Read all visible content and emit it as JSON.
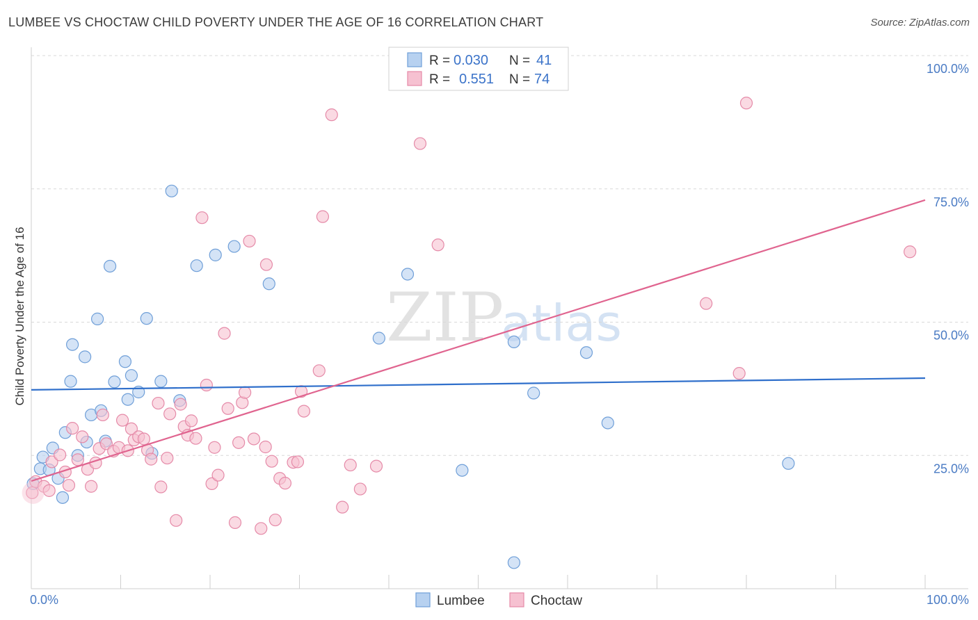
{
  "title": "LUMBEE VS CHOCTAW CHILD POVERTY UNDER THE AGE OF 16 CORRELATION CHART",
  "source": "Source: ZipAtlas.com",
  "watermark": {
    "zip": "ZIP",
    "atlas": "atlas"
  },
  "colors": {
    "lumbee_fill": "#b7d1f0",
    "lumbee_stroke": "#6f9fd8",
    "lumbee_line": "#2f6fcb",
    "choctaw_fill": "#f6c1d1",
    "choctaw_stroke": "#e58aa8",
    "choctaw_line": "#e0648f",
    "grid": "#d8d8d8",
    "axis_label": "#4a7bc4"
  },
  "legend": {
    "rows": [
      {
        "r_label": "R =",
        "r_value": "0.030",
        "n_label": "N =",
        "n_value": "41"
      },
      {
        "r_label": "R =",
        "r_value": "0.551",
        "n_label": "N =",
        "n_value": "74"
      }
    ]
  },
  "bottom_legend": [
    "Lumbee",
    "Choctaw"
  ],
  "chart_data": {
    "type": "scatter",
    "title": "LUMBEE VS CHOCTAW CHILD POVERTY UNDER THE AGE OF 16 CORRELATION CHART",
    "xlabel": "",
    "ylabel": "Child Poverty Under the Age of 16",
    "xlim": [
      0,
      100
    ],
    "ylim": [
      0,
      100
    ],
    "x_tick_labels": [
      "0.0%",
      "100.0%"
    ],
    "y_tick_labels": [
      "25.0%",
      "50.0%",
      "75.0%",
      "100.0%"
    ],
    "y_ticks": [
      25,
      50,
      75,
      100
    ],
    "grid": true,
    "legend_placement": "top-center",
    "series": [
      {
        "name": "Lumbee",
        "r": 0.03,
        "n": 41,
        "trend": [
          [
            0,
            37.3
          ],
          [
            100,
            39.5
          ]
        ],
        "points": [
          [
            0.2,
            19.7
          ],
          [
            1.0,
            22.5
          ],
          [
            1.3,
            24.7
          ],
          [
            2.0,
            22.3
          ],
          [
            2.4,
            26.4
          ],
          [
            3.0,
            20.7
          ],
          [
            3.5,
            17.1
          ],
          [
            3.8,
            29.3
          ],
          [
            4.4,
            38.9
          ],
          [
            4.6,
            45.8
          ],
          [
            5.2,
            25.0
          ],
          [
            6.0,
            43.5
          ],
          [
            6.2,
            27.5
          ],
          [
            6.7,
            32.6
          ],
          [
            7.4,
            50.6
          ],
          [
            7.8,
            33.4
          ],
          [
            8.3,
            27.7
          ],
          [
            8.8,
            60.5
          ],
          [
            9.3,
            38.8
          ],
          [
            10.5,
            42.6
          ],
          [
            10.8,
            35.5
          ],
          [
            11.2,
            40.0
          ],
          [
            12.0,
            36.9
          ],
          [
            12.9,
            50.7
          ],
          [
            13.5,
            25.4
          ],
          [
            14.5,
            38.9
          ],
          [
            15.7,
            74.6
          ],
          [
            16.6,
            35.3
          ],
          [
            18.5,
            60.6
          ],
          [
            20.6,
            62.6
          ],
          [
            22.7,
            64.2
          ],
          [
            26.6,
            57.2
          ],
          [
            38.9,
            47.0
          ],
          [
            42.1,
            59.0
          ],
          [
            48.2,
            22.2
          ],
          [
            54.0,
            46.3
          ],
          [
            54.0,
            4.9
          ],
          [
            56.2,
            36.7
          ],
          [
            62.1,
            44.3
          ],
          [
            64.5,
            31.1
          ],
          [
            84.7,
            23.5
          ]
        ]
      },
      {
        "name": "Choctaw",
        "r": 0.551,
        "n": 74,
        "trend": [
          [
            0,
            20.2
          ],
          [
            100,
            72.9
          ]
        ],
        "points": [
          [
            0.1,
            18.0
          ],
          [
            0.5,
            20.1
          ],
          [
            1.4,
            19.2
          ],
          [
            2.0,
            18.4
          ],
          [
            2.3,
            23.8
          ],
          [
            3.2,
            25.1
          ],
          [
            3.8,
            21.9
          ],
          [
            4.2,
            19.4
          ],
          [
            4.6,
            30.1
          ],
          [
            5.2,
            24.2
          ],
          [
            5.7,
            28.5
          ],
          [
            6.3,
            22.4
          ],
          [
            6.7,
            19.2
          ],
          [
            7.2,
            23.6
          ],
          [
            7.6,
            26.3
          ],
          [
            8.0,
            32.6
          ],
          [
            8.4,
            27.2
          ],
          [
            9.2,
            25.8
          ],
          [
            9.8,
            26.5
          ],
          [
            10.2,
            31.6
          ],
          [
            10.8,
            25.9
          ],
          [
            11.2,
            30.0
          ],
          [
            11.5,
            27.9
          ],
          [
            12.0,
            28.5
          ],
          [
            12.6,
            28.1
          ],
          [
            13.0,
            26.0
          ],
          [
            13.4,
            24.3
          ],
          [
            14.2,
            34.8
          ],
          [
            14.5,
            19.1
          ],
          [
            15.2,
            24.5
          ],
          [
            15.5,
            32.8
          ],
          [
            16.2,
            12.8
          ],
          [
            16.7,
            34.6
          ],
          [
            17.1,
            30.4
          ],
          [
            17.5,
            28.8
          ],
          [
            17.9,
            31.5
          ],
          [
            18.4,
            28.2
          ],
          [
            19.1,
            69.6
          ],
          [
            19.6,
            38.2
          ],
          [
            20.2,
            19.7
          ],
          [
            20.5,
            26.5
          ],
          [
            20.9,
            21.3
          ],
          [
            21.6,
            47.9
          ],
          [
            22.0,
            33.8
          ],
          [
            22.8,
            12.4
          ],
          [
            23.2,
            27.4
          ],
          [
            23.6,
            34.9
          ],
          [
            23.9,
            36.8
          ],
          [
            24.4,
            65.2
          ],
          [
            24.9,
            28.1
          ],
          [
            25.7,
            11.3
          ],
          [
            26.3,
            60.8
          ],
          [
            26.9,
            23.9
          ],
          [
            27.3,
            12.9
          ],
          [
            27.8,
            20.7
          ],
          [
            28.4,
            19.8
          ],
          [
            29.3,
            23.7
          ],
          [
            29.8,
            23.8
          ],
          [
            30.2,
            37.0
          ],
          [
            30.5,
            33.3
          ],
          [
            32.2,
            40.9
          ],
          [
            32.6,
            69.8
          ],
          [
            33.6,
            88.9
          ],
          [
            34.8,
            15.3
          ],
          [
            35.7,
            23.2
          ],
          [
            36.8,
            18.7
          ],
          [
            38.6,
            23.0
          ],
          [
            43.5,
            83.5
          ],
          [
            45.5,
            64.5
          ],
          [
            75.5,
            53.5
          ],
          [
            79.2,
            40.4
          ],
          [
            80.0,
            91.1
          ],
          [
            98.3,
            63.2
          ],
          [
            26.2,
            26.6
          ]
        ]
      }
    ]
  }
}
